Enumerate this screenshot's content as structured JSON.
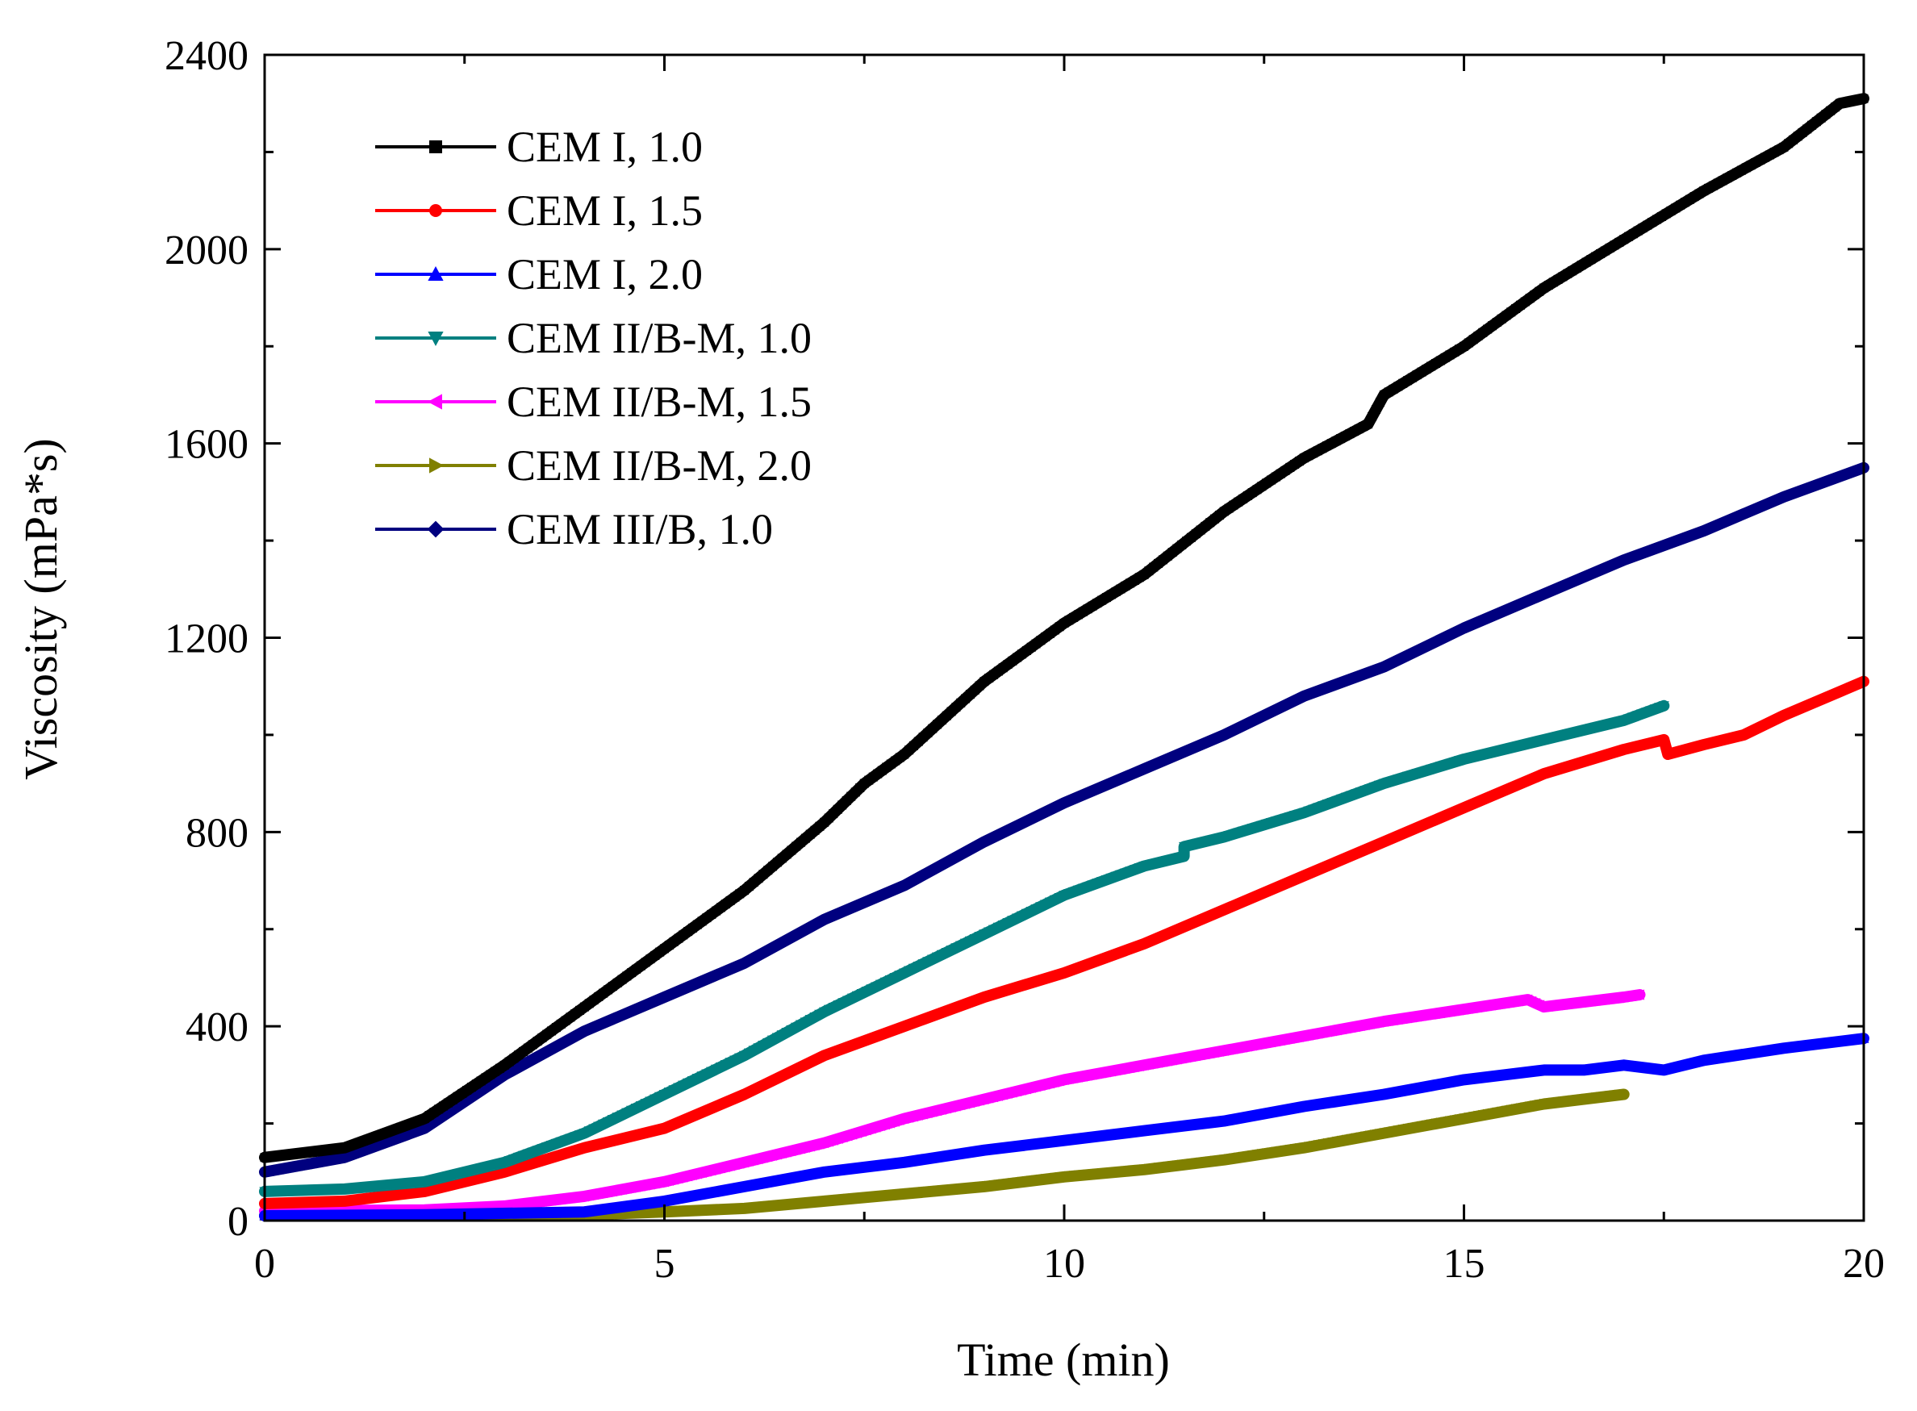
{
  "chart_data": {
    "type": "line",
    "title": "",
    "xlabel": "Time (min)",
    "ylabel": "Viscosity (mPa*s)",
    "xlim": [
      0,
      20
    ],
    "ylim": [
      0,
      2400
    ],
    "x_ticks": [
      0,
      5,
      10,
      15,
      20
    ],
    "y_ticks": [
      0,
      400,
      800,
      1200,
      1600,
      2000,
      2400
    ],
    "x_tick_labels": [
      "0",
      "5",
      "10",
      "15",
      "20"
    ],
    "y_tick_labels": [
      "0",
      "400",
      "800",
      "1200",
      "1600",
      "2000",
      "2400"
    ],
    "grid": false,
    "legend_position": "top-left",
    "series": [
      {
        "name": "CEM I, 1.0",
        "color": "#000000",
        "marker": "square",
        "points": [
          [
            0,
            130
          ],
          [
            1,
            150
          ],
          [
            2,
            210
          ],
          [
            3,
            320
          ],
          [
            4,
            440
          ],
          [
            5,
            560
          ],
          [
            6,
            680
          ],
          [
            7,
            820
          ],
          [
            7.5,
            900
          ],
          [
            8,
            960
          ],
          [
            9,
            1110
          ],
          [
            10,
            1230
          ],
          [
            11,
            1330
          ],
          [
            12,
            1460
          ],
          [
            13,
            1570
          ],
          [
            13.8,
            1640
          ],
          [
            14,
            1700
          ],
          [
            15,
            1800
          ],
          [
            16,
            1920
          ],
          [
            17,
            2020
          ],
          [
            18,
            2120
          ],
          [
            19,
            2210
          ],
          [
            19.7,
            2300
          ],
          [
            20,
            2310
          ]
        ]
      },
      {
        "name": "CEM I, 1.5",
        "color": "#ff0000",
        "marker": "circle",
        "points": [
          [
            0,
            35
          ],
          [
            1,
            40
          ],
          [
            2,
            60
          ],
          [
            3,
            100
          ],
          [
            4,
            150
          ],
          [
            5,
            190
          ],
          [
            6,
            260
          ],
          [
            7,
            340
          ],
          [
            8,
            400
          ],
          [
            9,
            460
          ],
          [
            10,
            510
          ],
          [
            11,
            570
          ],
          [
            12,
            640
          ],
          [
            13,
            710
          ],
          [
            14,
            780
          ],
          [
            15,
            850
          ],
          [
            16,
            920
          ],
          [
            17,
            970
          ],
          [
            17.5,
            990
          ],
          [
            17.55,
            960
          ],
          [
            18,
            980
          ],
          [
            18.5,
            1000
          ],
          [
            19,
            1040
          ],
          [
            20,
            1110
          ]
        ]
      },
      {
        "name": "CEM I, 2.0",
        "color": "#0000ff",
        "marker": "triangle-up",
        "points": [
          [
            0,
            10
          ],
          [
            2,
            12
          ],
          [
            4,
            18
          ],
          [
            5,
            40
          ],
          [
            6,
            70
          ],
          [
            7,
            100
          ],
          [
            8,
            120
          ],
          [
            9,
            145
          ],
          [
            10,
            165
          ],
          [
            11,
            185
          ],
          [
            12,
            205
          ],
          [
            13,
            235
          ],
          [
            14,
            260
          ],
          [
            15,
            290
          ],
          [
            16,
            310
          ],
          [
            16.5,
            310
          ],
          [
            17,
            320
          ],
          [
            17.5,
            310
          ],
          [
            18,
            330
          ],
          [
            19,
            355
          ],
          [
            20,
            375
          ]
        ]
      },
      {
        "name": "CEM II/B-M, 1.0",
        "color": "#008080",
        "marker": "triangle-down",
        "points": [
          [
            0,
            60
          ],
          [
            1,
            65
          ],
          [
            2,
            80
          ],
          [
            3,
            120
          ],
          [
            4,
            180
          ],
          [
            5,
            260
          ],
          [
            6,
            340
          ],
          [
            7,
            430
          ],
          [
            8,
            510
          ],
          [
            9,
            590
          ],
          [
            10,
            670
          ],
          [
            11,
            730
          ],
          [
            11.5,
            750
          ],
          [
            11.5,
            770
          ],
          [
            12,
            790
          ],
          [
            13,
            840
          ],
          [
            14,
            900
          ],
          [
            15,
            950
          ],
          [
            16,
            990
          ],
          [
            17,
            1030
          ],
          [
            17.5,
            1060
          ]
        ]
      },
      {
        "name": "CEM II/B-M, 1.5",
        "color": "#ff00ff",
        "marker": "triangle-left",
        "points": [
          [
            0,
            20
          ],
          [
            2,
            22
          ],
          [
            3,
            30
          ],
          [
            4,
            50
          ],
          [
            5,
            80
          ],
          [
            6,
            120
          ],
          [
            7,
            160
          ],
          [
            8,
            210
          ],
          [
            9,
            250
          ],
          [
            10,
            290
          ],
          [
            11,
            320
          ],
          [
            12,
            350
          ],
          [
            13,
            380
          ],
          [
            14,
            410
          ],
          [
            15,
            435
          ],
          [
            15.8,
            455
          ],
          [
            16,
            440
          ],
          [
            17,
            460
          ],
          [
            17.2,
            465
          ]
        ]
      },
      {
        "name": "CEM II/B-M, 2.0",
        "color": "#808000",
        "marker": "triangle-right",
        "points": [
          [
            0,
            10
          ],
          [
            4,
            12
          ],
          [
            5,
            18
          ],
          [
            6,
            25
          ],
          [
            7,
            40
          ],
          [
            8,
            55
          ],
          [
            9,
            70
          ],
          [
            10,
            90
          ],
          [
            11,
            105
          ],
          [
            12,
            125
          ],
          [
            13,
            150
          ],
          [
            14,
            180
          ],
          [
            15,
            210
          ],
          [
            16,
            240
          ],
          [
            17,
            260
          ]
        ]
      },
      {
        "name": "CEM III/B, 1.0",
        "color": "#00007f",
        "marker": "diamond",
        "points": [
          [
            0,
            100
          ],
          [
            1,
            130
          ],
          [
            2,
            190
          ],
          [
            3,
            300
          ],
          [
            4,
            390
          ],
          [
            5,
            460
          ],
          [
            6,
            530
          ],
          [
            7,
            620
          ],
          [
            8,
            690
          ],
          [
            9,
            780
          ],
          [
            10,
            860
          ],
          [
            11,
            930
          ],
          [
            12,
            1000
          ],
          [
            13,
            1080
          ],
          [
            14,
            1140
          ],
          [
            15,
            1220
          ],
          [
            16,
            1290
          ],
          [
            17,
            1360
          ],
          [
            18,
            1420
          ],
          [
            19,
            1490
          ],
          [
            20,
            1550
          ]
        ]
      }
    ]
  }
}
